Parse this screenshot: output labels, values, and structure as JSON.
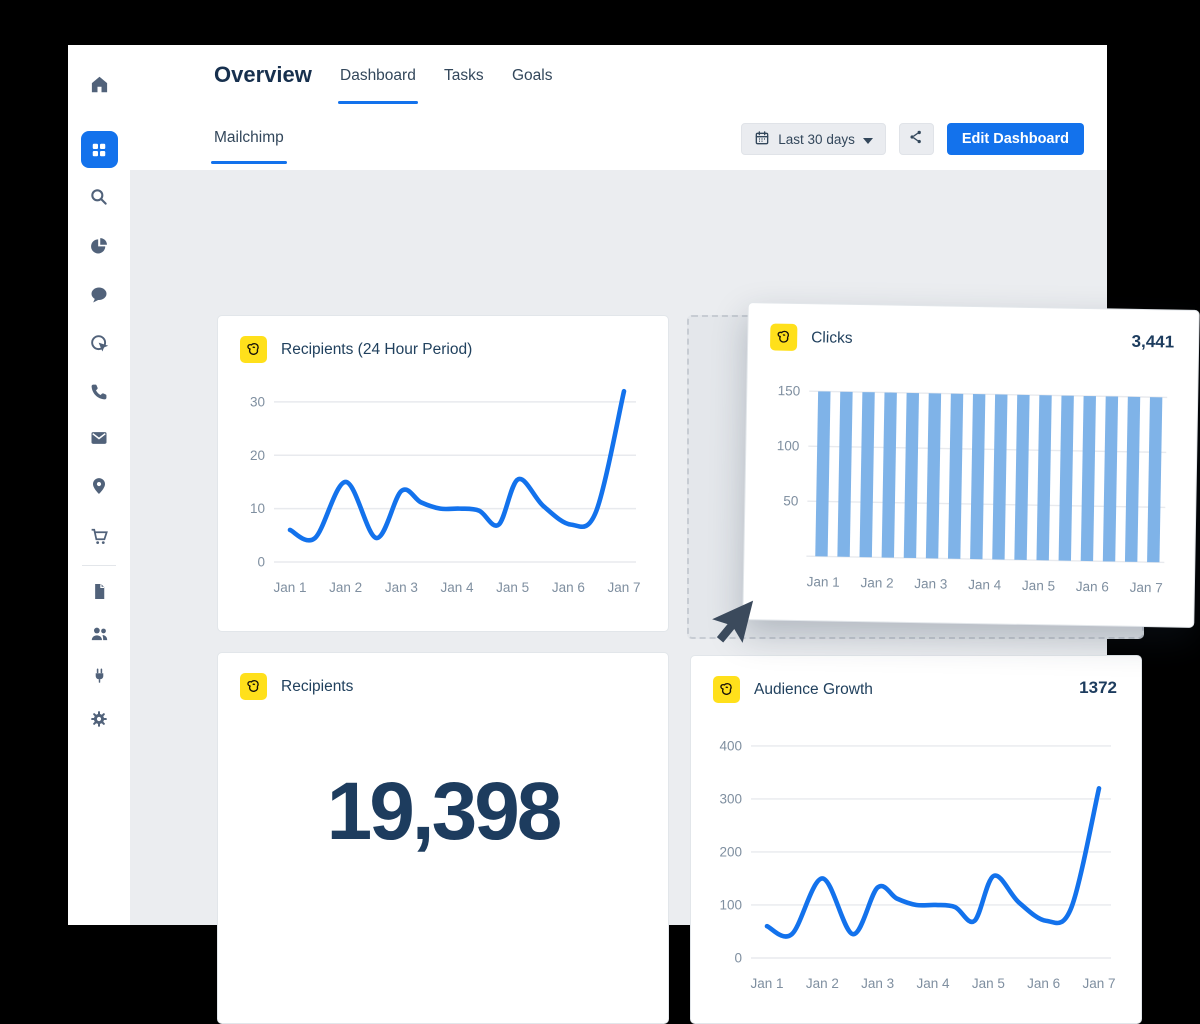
{
  "colors": {
    "accent_blue": "#1372EC",
    "bar_blue": "#7FB3E8",
    "navy_text": "#1D3C5E",
    "slate_text": "#33475B",
    "axis_gray": "#7F8FA0",
    "mailchimp_yellow": "#FFE01B",
    "content_bg": "#EBEDF0"
  },
  "header": {
    "title": "Overview",
    "tabs": [
      {
        "label": "Dashboard",
        "active": true
      },
      {
        "label": "Tasks",
        "active": false
      },
      {
        "label": "Goals",
        "active": false
      }
    ]
  },
  "subheader": {
    "tab_label": "Mailchimp",
    "date_button": {
      "icon": "calendar-icon",
      "label": "Last 30 days",
      "caret": "chevron-down-icon"
    },
    "share_button": {
      "icon": "share-icon"
    },
    "edit_button": {
      "label": "Edit Dashboard"
    }
  },
  "sidebar": {
    "items": [
      {
        "icon": "home-icon",
        "active": false
      },
      {
        "icon": "dashboard-grid-icon",
        "active": true
      },
      {
        "icon": "search-icon",
        "active": false
      },
      {
        "icon": "pie-chart-icon",
        "active": false
      },
      {
        "icon": "chat-icon",
        "active": false
      },
      {
        "icon": "target-click-icon",
        "active": false
      },
      {
        "icon": "phone-icon",
        "active": false
      },
      {
        "icon": "mail-icon",
        "active": false
      },
      {
        "icon": "location-pin-icon",
        "active": false
      },
      {
        "icon": "cart-icon",
        "active": false
      },
      {
        "icon": "document-icon",
        "active": false
      },
      {
        "icon": "users-icon",
        "active": false
      },
      {
        "icon": "plug-icon",
        "active": false
      },
      {
        "icon": "gear-icon",
        "active": false
      }
    ]
  },
  "cards": {
    "recipients_24h": {
      "title": "Recipients (24 Hour Period)"
    },
    "clicks": {
      "title": "Clicks",
      "value": "3,441"
    },
    "recipients_total": {
      "title": "Recipients",
      "value": "19,398"
    },
    "audience_growth": {
      "title": "Audience Growth",
      "value": "1372"
    }
  },
  "drag_state": {
    "dragged_card": "Clicks",
    "drop_placeholder_visible": true
  },
  "chart_data": [
    {
      "id": "recipients_24h",
      "type": "line",
      "title": "Recipients (24 Hour Period)",
      "x": [
        1,
        1.45,
        2,
        2.55,
        3,
        3.35,
        3.7,
        4.05,
        4.4,
        4.75,
        5.1,
        5.55,
        6.05,
        6.5,
        7
      ],
      "values": [
        6,
        4.5,
        15,
        4.5,
        13.3,
        11.2,
        10,
        10,
        9.6,
        7,
        15.5,
        10.5,
        7,
        9.5,
        32
      ],
      "x_tick_labels": [
        "Jan 1",
        "Jan 2",
        "Jan 3",
        "Jan 4",
        "Jan 5",
        "Jan 6",
        "Jan 7"
      ],
      "yticks": [
        0,
        10,
        20,
        30
      ],
      "ylim": [
        0,
        32.6
      ],
      "color": "#1372EC",
      "grid": true,
      "legend": "none"
    },
    {
      "id": "clicks",
      "type": "bar",
      "title": "Clicks",
      "total": "3,441",
      "values": [
        150,
        150,
        150,
        150,
        150,
        150,
        150,
        150,
        150,
        150,
        150,
        150,
        150,
        150,
        150,
        150
      ],
      "x_tick_labels": [
        "Jan 1",
        "Jan 2",
        "Jan 3",
        "Jan 4",
        "Jan 5",
        "Jan 6",
        "Jan 7"
      ],
      "yticks": [
        0,
        50,
        100,
        150
      ],
      "ytick_labels": [
        "",
        "50",
        "100",
        "150"
      ],
      "ylim": [
        0,
        160
      ],
      "bar_color": "#7FB3E8",
      "grid": true,
      "legend": "none"
    },
    {
      "id": "audience_growth",
      "type": "line",
      "title": "Audience Growth",
      "total": "1372",
      "x": [
        1,
        1.45,
        2,
        2.55,
        3,
        3.35,
        3.7,
        4.05,
        4.4,
        4.75,
        5.1,
        5.55,
        6.05,
        6.5,
        7
      ],
      "values": [
        60,
        45,
        150,
        45,
        133,
        112,
        100,
        100,
        96,
        70,
        155,
        105,
        70,
        95,
        320
      ],
      "x_tick_labels": [
        "Jan 1",
        "Jan 2",
        "Jan 3",
        "Jan 4",
        "Jan 5",
        "Jan 6",
        "Jan 7"
      ],
      "yticks": [
        0,
        100,
        200,
        300,
        400
      ],
      "ylim": [
        0,
        430
      ],
      "color": "#1372EC",
      "grid": true,
      "legend": "none"
    }
  ]
}
